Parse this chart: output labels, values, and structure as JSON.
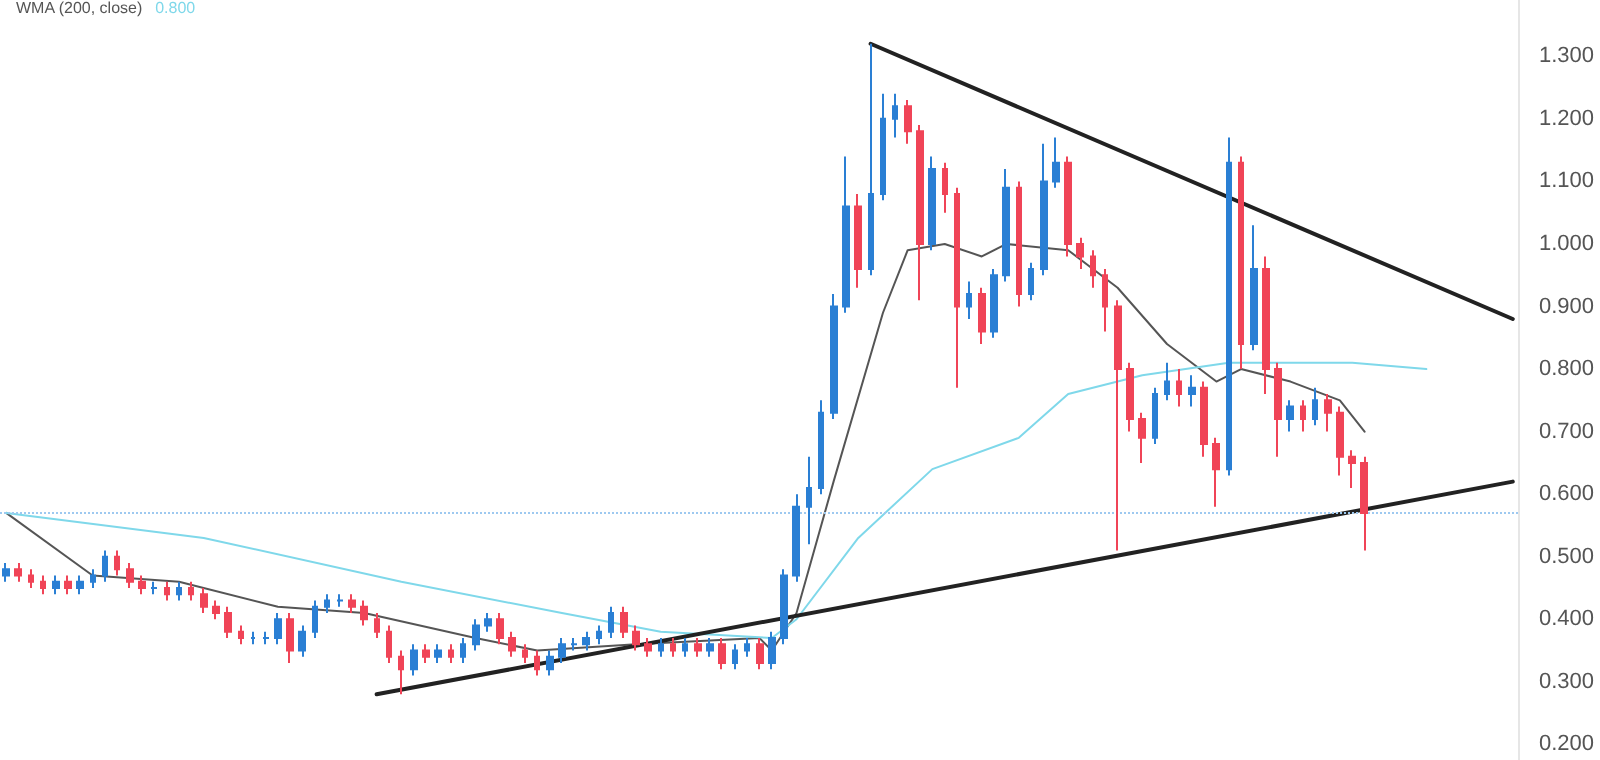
{
  "chart_data": {
    "type": "candlestick",
    "annotations": [
      "WMA (200, close)",
      "0.800"
    ],
    "categories": [
      null,
      null,
      null,
      null,
      null,
      null,
      null,
      null,
      null,
      null,
      null,
      null,
      null,
      null,
      null,
      null,
      null,
      null,
      null,
      null,
      null,
      null,
      null,
      null,
      null,
      null,
      null,
      null,
      null,
      null,
      null,
      null,
      null,
      null,
      null,
      null,
      null,
      null,
      null,
      null,
      null,
      null,
      null,
      null,
      null,
      null,
      null,
      null,
      null,
      null,
      null,
      null,
      null,
      null,
      null,
      null,
      null,
      null,
      null,
      null,
      null,
      null,
      null,
      null,
      null,
      null,
      null,
      null,
      null,
      null,
      null,
      null,
      null,
      null,
      null,
      null,
      null,
      null,
      null,
      null,
      null,
      null,
      null,
      null,
      null,
      null,
      null,
      null,
      null,
      null,
      null,
      null,
      null,
      null,
      null,
      null,
      null,
      null,
      null,
      null,
      null,
      null,
      null,
      null,
      null,
      null,
      null,
      null,
      null,
      null,
      null,
      null,
      null,
      null,
      null,
      null,
      null,
      null,
      null,
      null,
      null,
      null,
      null
    ],
    "ylim": [
      0.175,
      1.39
    ],
    "yticks": [
      {
        "value": 0.2,
        "label": "0.200"
      },
      {
        "value": 0.3,
        "label": "0.300"
      },
      {
        "value": 0.4,
        "label": "0.400"
      },
      {
        "value": 0.5,
        "label": "0.500"
      },
      {
        "value": 0.6,
        "label": "0.600"
      },
      {
        "value": 0.7,
        "label": "0.700"
      },
      {
        "value": 0.8,
        "label": "0.800"
      },
      {
        "value": 0.9,
        "label": "0.900"
      },
      {
        "value": 1.0,
        "label": "1.000"
      },
      {
        "value": 1.1,
        "label": "1.100"
      },
      {
        "value": 1.2,
        "label": "1.200"
      },
      {
        "value": 1.3,
        "label": "1.300"
      }
    ],
    "grid": false,
    "ref_lines": [
      {
        "axis": "y",
        "value": 0.57,
        "color": "#9ec9f0",
        "line_style": "dotted"
      }
    ],
    "series": [
      {
        "colors": [
          "#2a7fd4",
          "#f04457",
          "#f04457",
          "#f04457",
          "#2a7fd4",
          "#f04457",
          "#2a7fd4",
          "#2a7fd4",
          "#2a7fd4",
          "#f04457",
          "#f04457",
          "#f04457",
          "#2a7fd4",
          "#f04457",
          "#2a7fd4",
          "#f04457",
          "#f04457",
          "#f04457",
          "#f04457",
          "#f04457",
          "#2a7fd4",
          "#2a7fd4",
          "#2a7fd4",
          "#f04457",
          "#2a7fd4",
          "#2a7fd4",
          "#2a7fd4",
          "#2a7fd4",
          "#f04457",
          "#f04457",
          "#f04457",
          "#f04457",
          "#f04457",
          "#2a7fd4",
          "#f04457",
          "#2a7fd4",
          "#f04457",
          "#2a7fd4",
          "#2a7fd4",
          "#2a7fd4",
          "#f04457",
          "#f04457",
          "#f04457",
          "#f04457",
          "#2a7fd4",
          "#2a7fd4",
          "#2a7fd4",
          "#2a7fd4",
          "#2a7fd4",
          "#2a7fd4",
          "#f04457",
          "#f04457",
          "#f04457",
          "#2a7fd4",
          "#f04457",
          "#2a7fd4",
          "#f04457",
          "#2a7fd4",
          "#f04457",
          "#2a7fd4",
          "#2a7fd4",
          "#f04457",
          "#2a7fd4",
          "#2a7fd4",
          "#2a7fd4",
          "#2a7fd4",
          "#2a7fd4",
          "#2a7fd4",
          "#2a7fd4",
          "#f04457",
          "#2a7fd4",
          "#2a7fd4",
          "#2a7fd4",
          "#f04457",
          "#f04457",
          "#2a7fd4",
          "#f04457",
          "#f04457",
          "#2a7fd4",
          "#f04457",
          "#2a7fd4",
          "#2a7fd4",
          "#f04457",
          "#2a7fd4",
          "#2a7fd4",
          "#2a7fd4",
          "#f04457",
          "#f04457",
          "#f04457",
          "#f04457",
          "#f04457",
          "#f04457",
          "#f04457",
          "#2a7fd4",
          "#2a7fd4",
          "#f04457",
          "#2a7fd4",
          "#f04457",
          "#f04457",
          "#2a7fd4",
          "#f04457",
          "#2a7fd4",
          "#f04457",
          "#f04457",
          "#2a7fd4",
          "#f04457",
          "#2a7fd4",
          "#f04457",
          "#f04457",
          "#f04457",
          "#f04457",
          null,
          null,
          null,
          null,
          null,
          null,
          null,
          null,
          null,
          null,
          null,
          null
        ],
        "ohlc": [
          [
            0.47,
            0.49,
            0.46,
            0.48
          ],
          [
            0.48,
            0.49,
            0.46,
            0.47
          ],
          [
            0.47,
            0.48,
            0.45,
            0.46
          ],
          [
            0.46,
            0.47,
            0.44,
            0.45
          ],
          [
            0.45,
            0.47,
            0.44,
            0.46
          ],
          [
            0.46,
            0.47,
            0.44,
            0.45
          ],
          [
            0.45,
            0.47,
            0.44,
            0.46
          ],
          [
            0.46,
            0.48,
            0.45,
            0.47
          ],
          [
            0.47,
            0.51,
            0.46,
            0.5
          ],
          [
            0.5,
            0.51,
            0.47,
            0.48
          ],
          [
            0.48,
            0.49,
            0.45,
            0.46
          ],
          [
            0.46,
            0.47,
            0.44,
            0.45
          ],
          [
            0.45,
            0.46,
            0.44,
            0.45
          ],
          [
            0.45,
            0.46,
            0.43,
            0.44
          ],
          [
            0.44,
            0.46,
            0.43,
            0.45
          ],
          [
            0.45,
            0.46,
            0.43,
            0.44
          ],
          [
            0.44,
            0.45,
            0.41,
            0.42
          ],
          [
            0.42,
            0.43,
            0.4,
            0.41
          ],
          [
            0.41,
            0.42,
            0.37,
            0.38
          ],
          [
            0.38,
            0.39,
            0.36,
            0.37
          ],
          [
            0.37,
            0.38,
            0.36,
            0.37
          ],
          [
            0.37,
            0.38,
            0.36,
            0.37
          ],
          [
            0.37,
            0.41,
            0.36,
            0.4
          ],
          [
            0.4,
            0.41,
            0.33,
            0.35
          ],
          [
            0.35,
            0.39,
            0.34,
            0.38
          ],
          [
            0.38,
            0.43,
            0.37,
            0.42
          ],
          [
            0.42,
            0.44,
            0.41,
            0.43
          ],
          [
            0.43,
            0.44,
            0.42,
            0.43
          ],
          [
            0.43,
            0.44,
            0.41,
            0.42
          ],
          [
            0.42,
            0.43,
            0.39,
            0.4
          ],
          [
            0.4,
            0.41,
            0.37,
            0.38
          ],
          [
            0.38,
            0.39,
            0.33,
            0.34
          ],
          [
            0.34,
            0.35,
            0.28,
            0.32
          ],
          [
            0.32,
            0.36,
            0.31,
            0.35
          ],
          [
            0.35,
            0.36,
            0.33,
            0.34
          ],
          [
            0.34,
            0.36,
            0.33,
            0.35
          ],
          [
            0.35,
            0.36,
            0.33,
            0.34
          ],
          [
            0.34,
            0.37,
            0.33,
            0.36
          ],
          [
            0.36,
            0.4,
            0.35,
            0.39
          ],
          [
            0.39,
            0.41,
            0.38,
            0.4
          ],
          [
            0.4,
            0.41,
            0.36,
            0.37
          ],
          [
            0.37,
            0.38,
            0.34,
            0.35
          ],
          [
            0.35,
            0.36,
            0.33,
            0.34
          ],
          [
            0.34,
            0.35,
            0.31,
            0.32
          ],
          [
            0.32,
            0.35,
            0.31,
            0.34
          ],
          [
            0.34,
            0.37,
            0.33,
            0.36
          ],
          [
            0.36,
            0.37,
            0.35,
            0.36
          ],
          [
            0.36,
            0.38,
            0.35,
            0.37
          ],
          [
            0.37,
            0.39,
            0.36,
            0.38
          ],
          [
            0.38,
            0.42,
            0.37,
            0.41
          ],
          [
            0.41,
            0.42,
            0.37,
            0.38
          ],
          [
            0.38,
            0.39,
            0.35,
            0.36
          ],
          [
            0.36,
            0.37,
            0.34,
            0.35
          ],
          [
            0.35,
            0.37,
            0.34,
            0.36
          ],
          [
            0.36,
            0.37,
            0.34,
            0.35
          ],
          [
            0.35,
            0.37,
            0.34,
            0.36
          ],
          [
            0.36,
            0.37,
            0.34,
            0.35
          ],
          [
            0.35,
            0.37,
            0.34,
            0.36
          ],
          [
            0.36,
            0.37,
            0.32,
            0.33
          ],
          [
            0.33,
            0.36,
            0.32,
            0.35
          ],
          [
            0.35,
            0.37,
            0.34,
            0.36
          ],
          [
            0.36,
            0.37,
            0.32,
            0.33
          ],
          [
            0.33,
            0.38,
            0.32,
            0.37
          ],
          [
            0.37,
            0.48,
            0.36,
            0.47
          ],
          [
            0.47,
            0.6,
            0.46,
            0.58
          ],
          [
            0.58,
            0.66,
            0.52,
            0.61
          ],
          [
            0.61,
            0.75,
            0.6,
            0.73
          ],
          [
            0.73,
            0.92,
            0.72,
            0.9
          ],
          [
            0.9,
            1.14,
            0.89,
            1.06
          ],
          [
            1.06,
            1.08,
            0.93,
            0.96
          ],
          [
            0.96,
            1.32,
            0.95,
            1.08
          ],
          [
            1.08,
            1.24,
            1.07,
            1.2
          ],
          [
            1.2,
            1.24,
            1.17,
            1.22
          ],
          [
            1.22,
            1.23,
            1.16,
            1.18
          ],
          [
            1.18,
            1.19,
            0.91,
            1.0
          ],
          [
            1.0,
            1.14,
            0.99,
            1.12
          ],
          [
            1.12,
            1.13,
            1.05,
            1.08
          ],
          [
            1.08,
            1.09,
            0.77,
            0.9
          ],
          [
            0.9,
            0.94,
            0.88,
            0.92
          ],
          [
            0.92,
            0.93,
            0.84,
            0.86
          ],
          [
            0.86,
            0.96,
            0.85,
            0.95
          ],
          [
            0.95,
            1.12,
            0.94,
            1.09
          ],
          [
            1.09,
            1.1,
            0.9,
            0.92
          ],
          [
            0.92,
            0.97,
            0.91,
            0.96
          ],
          [
            0.96,
            1.16,
            0.95,
            1.1
          ],
          [
            1.1,
            1.17,
            1.09,
            1.13
          ],
          [
            1.13,
            1.14,
            0.98,
            1.0
          ],
          [
            1.0,
            1.01,
            0.96,
            0.98
          ],
          [
            0.98,
            0.99,
            0.93,
            0.95
          ],
          [
            0.95,
            0.96,
            0.86,
            0.9
          ],
          [
            0.9,
            0.91,
            0.51,
            0.8
          ],
          [
            0.8,
            0.81,
            0.7,
            0.72
          ],
          [
            0.72,
            0.73,
            0.65,
            0.69
          ],
          [
            0.69,
            0.77,
            0.68,
            0.76
          ],
          [
            0.76,
            0.81,
            0.75,
            0.78
          ],
          [
            0.78,
            0.8,
            0.74,
            0.76
          ],
          [
            0.76,
            0.79,
            0.74,
            0.77
          ],
          [
            0.77,
            0.78,
            0.66,
            0.68
          ],
          [
            0.68,
            0.69,
            0.58,
            0.64
          ],
          [
            0.64,
            1.17,
            0.63,
            1.13
          ],
          [
            1.13,
            1.14,
            0.8,
            0.84
          ],
          [
            0.84,
            1.03,
            0.83,
            0.96
          ],
          [
            0.96,
            0.98,
            0.76,
            0.8
          ],
          [
            0.8,
            0.81,
            0.66,
            0.72
          ],
          [
            0.72,
            0.75,
            0.7,
            0.74
          ],
          [
            0.74,
            0.75,
            0.7,
            0.72
          ],
          [
            0.72,
            0.77,
            0.71,
            0.75
          ],
          [
            0.75,
            0.76,
            0.7,
            0.73
          ],
          [
            0.73,
            0.74,
            0.63,
            0.66
          ],
          [
            0.66,
            0.67,
            0.61,
            0.65
          ],
          [
            0.65,
            0.66,
            0.51,
            0.57
          ],
          null,
          null,
          null,
          null,
          null,
          null,
          null,
          null,
          null,
          null,
          null,
          null
        ]
      },
      {
        "type": "line",
        "color": "#555555",
        "values": [
          0.57,
          null,
          null,
          null,
          null,
          null,
          null,
          0.47,
          null,
          null,
          null,
          null,
          null,
          null,
          0.46,
          null,
          null,
          null,
          null,
          null,
          null,
          null,
          0.42,
          null,
          null,
          null,
          null,
          null,
          null,
          0.41,
          null,
          null,
          null,
          null,
          null,
          null,
          null,
          null,
          0.37,
          null,
          null,
          null,
          null,
          0.35,
          null,
          null,
          null,
          null,
          null,
          null,
          null,
          0.36,
          null,
          null,
          null,
          null,
          null,
          null,
          null,
          null,
          null,
          0.37,
          0.35,
          null,
          0.41,
          null,
          null,
          0.62,
          null,
          null,
          null,
          0.89,
          null,
          0.99,
          null,
          null,
          1.0,
          null,
          null,
          0.98,
          null,
          1.0,
          null,
          null,
          null,
          null,
          0.99,
          null,
          null,
          null,
          0.93,
          null,
          null,
          null,
          0.84,
          null,
          null,
          null,
          0.78,
          null,
          0.8,
          null,
          null,
          null,
          0.78,
          null,
          null,
          null,
          0.75,
          null,
          0.7,
          null,
          null,
          null,
          null,
          null,
          null,
          null,
          null,
          null,
          null,
          null,
          null
        ]
      },
      {
        "type": "line",
        "color": "#7fd8ea",
        "values": [
          0.57,
          null,
          null,
          null,
          null,
          null,
          null,
          null,
          null,
          null,
          null,
          null,
          null,
          null,
          null,
          null,
          0.53,
          null,
          null,
          null,
          null,
          null,
          null,
          null,
          null,
          null,
          null,
          null,
          null,
          null,
          null,
          null,
          0.46,
          null,
          null,
          null,
          null,
          null,
          null,
          null,
          null,
          null,
          null,
          null,
          null,
          0.41,
          null,
          null,
          null,
          null,
          null,
          null,
          null,
          0.38,
          null,
          null,
          null,
          null,
          null,
          null,
          null,
          null,
          0.37,
          null,
          0.4,
          null,
          null,
          null,
          null,
          0.53,
          null,
          null,
          null,
          null,
          null,
          0.64,
          null,
          null,
          null,
          null,
          null,
          null,
          0.69,
          null,
          null,
          null,
          0.76,
          null,
          null,
          null,
          null,
          null,
          0.79,
          null,
          null,
          null,
          null,
          null,
          null,
          0.81,
          null,
          null,
          null,
          null,
          null,
          null,
          null,
          null,
          null,
          0.81,
          null,
          null,
          null,
          null,
          null,
          0.8,
          null,
          null,
          null,
          null,
          null,
          null,
          null
        ]
      },
      {
        "type": "line",
        "color": "#222222",
        "values": [
          null,
          null,
          null,
          null,
          null,
          null,
          null,
          null,
          null,
          null,
          null,
          null,
          null,
          null,
          null,
          null,
          null,
          null,
          null,
          null,
          null,
          null,
          null,
          null,
          null,
          null,
          null,
          null,
          null,
          null,
          null,
          null,
          null,
          null,
          null,
          null,
          null,
          null,
          null,
          null,
          null,
          null,
          null,
          null,
          null,
          null,
          null,
          null,
          null,
          null,
          null,
          null,
          null,
          null,
          null,
          null,
          null,
          null,
          null,
          null,
          null,
          null,
          null,
          null,
          null,
          null,
          null,
          null,
          null,
          null,
          1.32,
          null,
          null,
          null,
          null,
          null,
          null,
          null,
          null,
          null,
          null,
          null,
          null,
          null,
          null,
          null,
          null,
          null,
          null,
          null,
          null,
          null,
          null,
          null,
          null,
          null,
          null,
          null,
          null,
          null,
          null,
          null,
          null,
          null,
          null,
          null,
          null,
          null,
          null,
          null,
          null,
          null,
          null,
          null,
          null,
          null,
          null,
          null,
          null,
          null,
          null,
          null,
          0.88
        ]
      },
      {
        "type": "line",
        "color": "#222222",
        "values": [
          null,
          null,
          null,
          null,
          null,
          null,
          null,
          null,
          null,
          null,
          null,
          null,
          null,
          null,
          null,
          null,
          null,
          null,
          null,
          null,
          null,
          null,
          null,
          null,
          null,
          null,
          null,
          null,
          null,
          null,
          0.28,
          null,
          null,
          null,
          null,
          null,
          null,
          null,
          null,
          null,
          null,
          null,
          null,
          null,
          null,
          null,
          null,
          null,
          null,
          null,
          null,
          null,
          null,
          null,
          null,
          null,
          null,
          null,
          null,
          null,
          null,
          null,
          null,
          null,
          null,
          null,
          null,
          null,
          null,
          null,
          null,
          null,
          null,
          null,
          null,
          null,
          null,
          null,
          null,
          null,
          null,
          null,
          null,
          null,
          null,
          null,
          null,
          null,
          null,
          null,
          null,
          null,
          null,
          null,
          null,
          null,
          null,
          null,
          null,
          null,
          null,
          null,
          null,
          null,
          null,
          null,
          null,
          null,
          null,
          null,
          null,
          null,
          null,
          null,
          null,
          null,
          null,
          null,
          null,
          null,
          null,
          null,
          0.62
        ]
      }
    ]
  }
}
